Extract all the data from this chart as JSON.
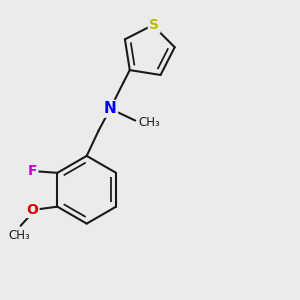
{
  "bg_color": "#ebebeb",
  "bond_color": "#1a1a1a",
  "bond_width": 1.5,
  "dbo": 0.018,
  "N_color": "#0000ee",
  "F_color": "#cc00cc",
  "O_color": "#dd0000",
  "S_color": "#bbbb00",
  "fig_width": 3.0,
  "fig_height": 3.0,
  "dpi": 100,
  "xlim": [
    0.0,
    1.0
  ],
  "ylim": [
    0.0,
    1.0
  ]
}
